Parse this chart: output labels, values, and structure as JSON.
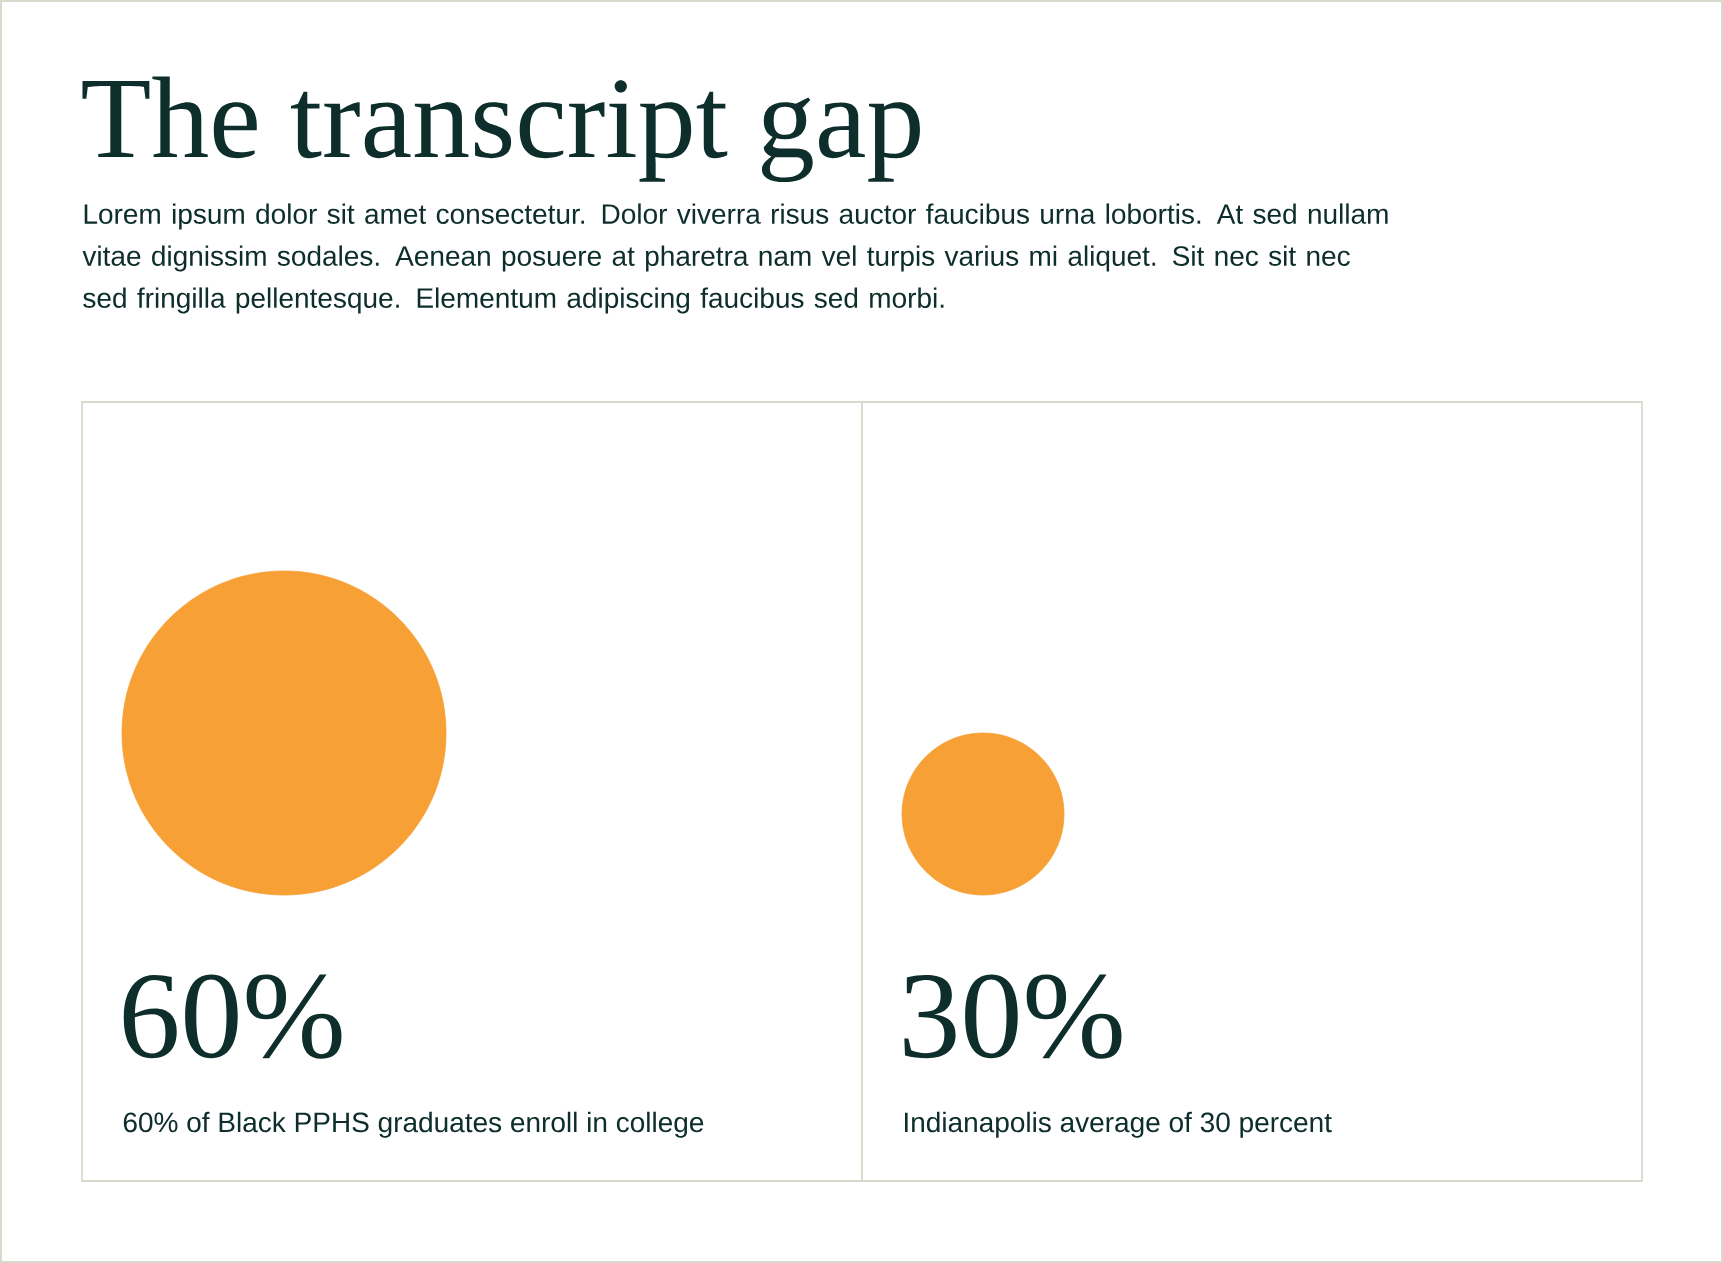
{
  "chart_data": {
    "type": "other",
    "title": "The transcript gap",
    "subtitle": "Lorem ipsum dolor sit amet consectetur. Dolor viverra risus auctor faucibus urna lobortis. At sed nullam vitae dignissim sodales. Aenean posuere at pharetra nam vel turpis varius mi aliquet. Sit nec sit nec sed fringilla pellentesque. Elementum adipiscing faucibus sed morbi.",
    "categories": [
      "60% of Black PPHS graduates enroll in college",
      "Indianapolis average of 30 percent"
    ],
    "values": [
      60,
      30
    ],
    "value_labels": [
      "60%",
      "30%"
    ],
    "color": "#f7a035"
  }
}
